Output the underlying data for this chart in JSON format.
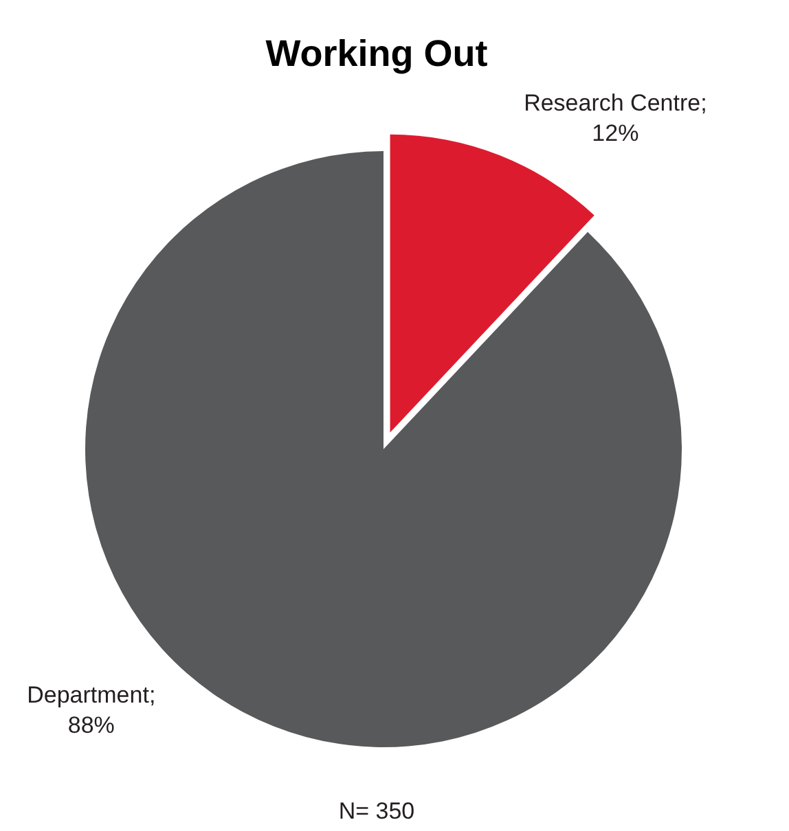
{
  "chart_data": {
    "type": "pie",
    "title": "Working Out",
    "categories": [
      "Research Centre",
      "Department"
    ],
    "values": [
      12,
      88
    ],
    "colors": [
      "#dc1c2e",
      "#58595b"
    ],
    "value_labels": [
      ";\n12%",
      ";\n88%"
    ],
    "annotations": [
      "N= 350"
    ]
  }
}
